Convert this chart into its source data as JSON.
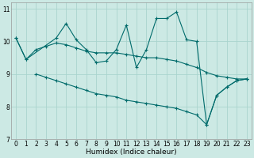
{
  "xlabel": "Humidex (Indice chaleur)",
  "xlim": [
    -0.5,
    23.5
  ],
  "ylim": [
    7,
    11.2
  ],
  "yticks": [
    7,
    8,
    9,
    10,
    11
  ],
  "xticks": [
    0,
    1,
    2,
    3,
    4,
    5,
    6,
    7,
    8,
    9,
    10,
    11,
    12,
    13,
    14,
    15,
    16,
    17,
    18,
    19,
    20,
    21,
    22,
    23
  ],
  "bg_color": "#cce9e4",
  "grid_color": "#aad4ce",
  "line_color": "#006b6b",
  "series": [
    {
      "x": [
        0,
        1,
        4,
        5,
        6,
        7,
        8,
        9,
        10,
        11,
        12,
        13,
        14,
        15,
        16,
        17,
        18,
        19,
        20,
        21,
        22,
        23
      ],
      "y": [
        10.1,
        9.45,
        10.1,
        10.55,
        10.05,
        9.75,
        9.35,
        9.4,
        9.75,
        10.5,
        9.2,
        9.75,
        10.7,
        10.7,
        10.9,
        10.05,
        10.0,
        7.45,
        8.35,
        8.6,
        8.8,
        8.85
      ]
    },
    {
      "x": [
        0,
        1,
        2,
        3,
        4,
        5,
        6,
        7,
        8,
        9,
        10,
        11,
        12,
        13,
        14,
        15,
        16,
        17,
        18,
        19,
        20,
        21,
        22,
        23
      ],
      "y": [
        10.1,
        9.45,
        9.75,
        9.85,
        9.95,
        9.9,
        9.8,
        9.7,
        9.65,
        9.65,
        9.65,
        9.6,
        9.55,
        9.5,
        9.5,
        9.45,
        9.4,
        9.3,
        9.2,
        9.05,
        8.95,
        8.9,
        8.85,
        8.85
      ]
    },
    {
      "x": [
        2,
        3,
        4,
        5,
        6,
        7,
        8,
        9,
        10,
        11,
        12,
        13,
        14,
        15,
        16,
        17,
        18,
        19,
        20,
        21,
        22,
        23
      ],
      "y": [
        9.0,
        8.9,
        8.8,
        8.7,
        8.6,
        8.5,
        8.4,
        8.35,
        8.3,
        8.2,
        8.15,
        8.1,
        8.05,
        8.0,
        7.95,
        7.85,
        7.75,
        7.45,
        8.35,
        8.6,
        8.8,
        8.85
      ]
    }
  ]
}
